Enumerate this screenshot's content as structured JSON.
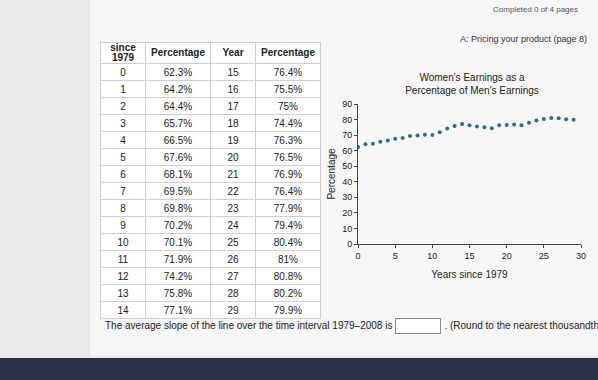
{
  "header": {
    "status": "Completed 0 of 4 pages",
    "link": "A: Pricing your product (page 8)"
  },
  "table": {
    "columns": [
      "since 1979",
      "Percentage",
      "Year",
      "Percentage"
    ],
    "rows": [
      [
        "0",
        "62.3%",
        "15",
        "76.4%"
      ],
      [
        "1",
        "64.2%",
        "16",
        "75.5%"
      ],
      [
        "2",
        "64.4%",
        "17",
        "75%"
      ],
      [
        "3",
        "65.7%",
        "18",
        "74.4%"
      ],
      [
        "4",
        "66.5%",
        "19",
        "76.3%"
      ],
      [
        "5",
        "67.6%",
        "20",
        "76.5%"
      ],
      [
        "6",
        "68.1%",
        "21",
        "76.9%"
      ],
      [
        "7",
        "69.5%",
        "22",
        "76.4%"
      ],
      [
        "8",
        "69.8%",
        "23",
        "77.9%"
      ],
      [
        "9",
        "70.2%",
        "24",
        "79.4%"
      ],
      [
        "10",
        "70.1%",
        "25",
        "80.4%"
      ],
      [
        "11",
        "71.9%",
        "26",
        "81%"
      ],
      [
        "12",
        "74.2%",
        "27",
        "80.8%"
      ],
      [
        "13",
        "75.8%",
        "28",
        "80.2%"
      ],
      [
        "14",
        "77.1%",
        "29",
        "79.9%"
      ]
    ]
  },
  "chart_data": {
    "type": "scatter",
    "title": "Women's Earnings as a Percentage of Men's Earnings",
    "x_label": "Years since 1979",
    "y_label": "Percentage",
    "x": [
      0,
      1,
      2,
      3,
      4,
      5,
      6,
      7,
      8,
      9,
      10,
      11,
      12,
      13,
      14,
      15,
      16,
      17,
      18,
      19,
      20,
      21,
      22,
      23,
      24,
      25,
      26,
      27,
      28,
      29
    ],
    "values": [
      62.3,
      64.2,
      64.4,
      65.7,
      66.5,
      67.6,
      68.1,
      69.5,
      69.8,
      70.2,
      70.1,
      71.9,
      74.2,
      75.8,
      77.1,
      76.4,
      75.5,
      75,
      74.4,
      76.3,
      76.5,
      76.9,
      76.4,
      77.9,
      79.4,
      80.4,
      81,
      80.8,
      80.2,
      79.9
    ],
    "color": "#2e6e86",
    "marker": "circle",
    "xlim": [
      0,
      30
    ],
    "xticks": [
      0,
      5,
      10,
      15,
      20,
      25,
      30
    ],
    "ylim": [
      0,
      90
    ],
    "yticks": [
      0,
      10,
      20,
      30,
      40,
      50,
      60,
      70,
      80,
      90
    ],
    "grid": false
  },
  "question": {
    "before": "The average slope of the line over the time interval 1979–2008 is",
    "after": ". (Round to the nearest thousandth.)"
  }
}
